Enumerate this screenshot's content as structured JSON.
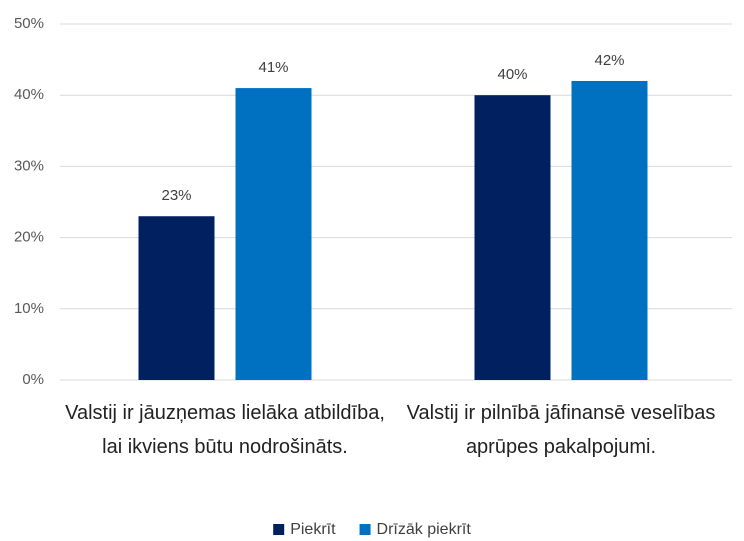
{
  "chart_data": {
    "type": "bar",
    "categories": [
      "Valstij ir jāuzņemas lielāka atbildība, lai ikviens būtu nodrošināts.",
      "Valstij ir pilnībā jāfinansē veselības aprūpes pakalpojumi."
    ],
    "series": [
      {
        "name": "Piekrīt",
        "color": "#002060",
        "values": [
          23,
          40
        ],
        "value_labels": [
          "23%",
          "40%"
        ]
      },
      {
        "name": "Drīzāk piekrīt",
        "color": "#0070c0",
        "values": [
          41,
          42
        ],
        "value_labels": [
          "41%",
          "42%"
        ]
      }
    ],
    "ylim": [
      0,
      50
    ],
    "yticks": [
      {
        "value": 0,
        "label": "0%"
      },
      {
        "value": 10,
        "label": "10%"
      },
      {
        "value": 20,
        "label": "20%"
      },
      {
        "value": 30,
        "label": "30%"
      },
      {
        "value": 40,
        "label": "40%"
      },
      {
        "value": 50,
        "label": "50%"
      }
    ],
    "grid": true,
    "legend": "bottom"
  }
}
